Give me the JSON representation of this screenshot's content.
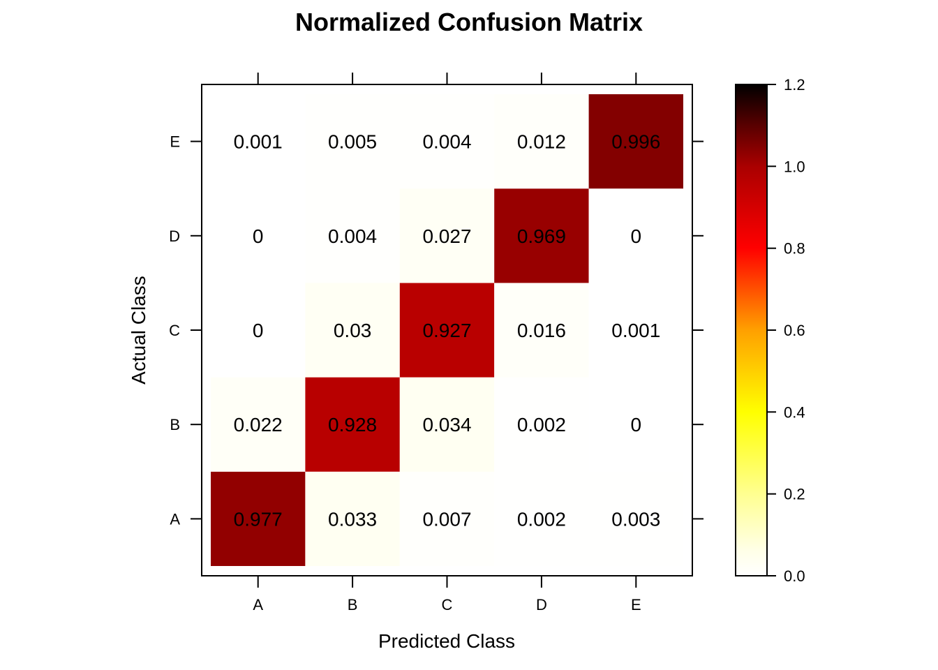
{
  "chart_data": {
    "type": "heatmap",
    "title": "Normalized Confusion Matrix",
    "xlabel": "Predicted Class",
    "ylabel": "Actual Class",
    "x_categories": [
      "A",
      "B",
      "C",
      "D",
      "E"
    ],
    "y_categories": [
      "A",
      "B",
      "C",
      "D",
      "E"
    ],
    "matrix": [
      {
        "actual": "A",
        "values": [
          0.977,
          0.033,
          0.007,
          0.002,
          0.003
        ],
        "labels": [
          "0.977",
          "0.033",
          "0.007",
          "0.002",
          "0.003"
        ]
      },
      {
        "actual": "B",
        "values": [
          0.022,
          0.928,
          0.034,
          0.002,
          0
        ],
        "labels": [
          "0.022",
          "0.928",
          "0.034",
          "0.002",
          "0"
        ]
      },
      {
        "actual": "C",
        "values": [
          0,
          0.03,
          0.927,
          0.016,
          0.001
        ],
        "labels": [
          "0",
          "0.03",
          "0.927",
          "0.016",
          "0.001"
        ]
      },
      {
        "actual": "D",
        "values": [
          0,
          0.004,
          0.027,
          0.969,
          0
        ],
        "labels": [
          "0",
          "0.004",
          "0.027",
          "0.969",
          "0"
        ]
      },
      {
        "actual": "E",
        "values": [
          0.001,
          0.005,
          0.004,
          0.012,
          0.996
        ],
        "labels": [
          "0.001",
          "0.005",
          "0.004",
          "0.012",
          "0.996"
        ]
      }
    ],
    "colorbar": {
      "range": [
        0,
        1.2
      ],
      "ticks": [
        "0.0",
        "0.2",
        "0.4",
        "0.6",
        "0.8",
        "1.0",
        "1.2"
      ],
      "palette": "heat",
      "colors": [
        "#FFFFFF",
        "#FFFF80",
        "#FFFF00",
        "#FFA500",
        "#FF0000",
        "#CC0000",
        "#800000",
        "#000000"
      ]
    },
    "grid": false,
    "legend_placement": "right"
  }
}
